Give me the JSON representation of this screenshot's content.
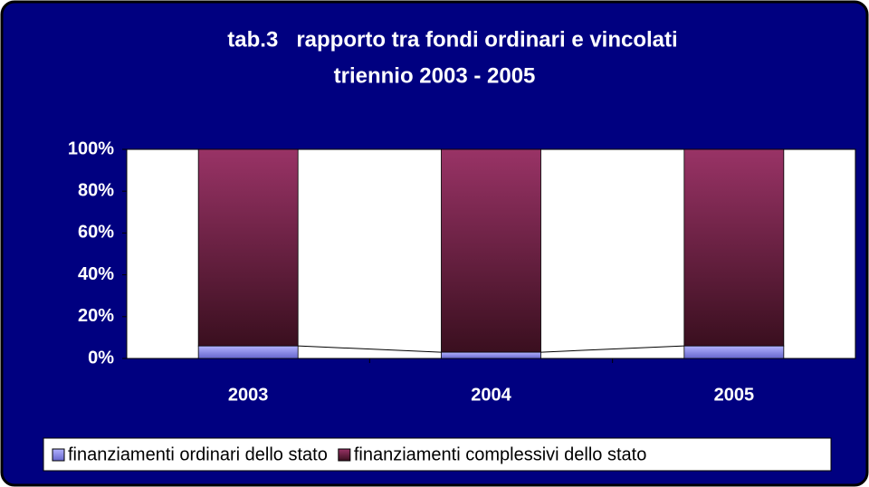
{
  "chart_data": {
    "type": "stacked-bar",
    "title": "tab.3   rapporto tra fondi ordinari e vincolati",
    "subtitle": "triennio 2003 - 2005",
    "categories": [
      "2003",
      "2004",
      "2005"
    ],
    "series": [
      {
        "name": "finanziamenti ordinari dello stato",
        "color": "#9999ff",
        "values": [
          6,
          3,
          6
        ]
      },
      {
        "name": "finanziamenti complessivi dello stato",
        "color": "#993366",
        "values": [
          94,
          97,
          94
        ]
      }
    ],
    "ylim": [
      0,
      100
    ],
    "yticks": [
      {
        "value": 0,
        "label": "0%"
      },
      {
        "value": 20,
        "label": "20%"
      },
      {
        "value": 40,
        "label": "40%"
      },
      {
        "value": 60,
        "label": "60%"
      },
      {
        "value": 80,
        "label": "80%"
      },
      {
        "value": 100,
        "label": "100%"
      }
    ],
    "legend": "bottom"
  }
}
